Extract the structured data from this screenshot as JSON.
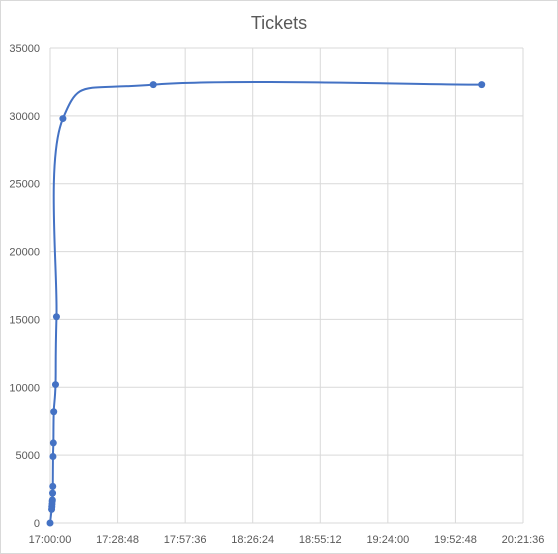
{
  "chart_data": {
    "type": "scatter",
    "title": "Tickets",
    "xlabel": "",
    "ylabel": "",
    "smooth_line": true,
    "grid": true,
    "legend": "none",
    "series_color": "#4472c4",
    "x_ticks": [
      "17:00:00",
      "17:28:48",
      "17:57:36",
      "18:26:24",
      "18:55:12",
      "19:24:00",
      "19:52:48",
      "20:21:36"
    ],
    "y_ticks": [
      "0",
      "5000",
      "10000",
      "15000",
      "20000",
      "25000",
      "30000",
      "35000"
    ],
    "xlim": [
      "17:00:00",
      "20:21:36"
    ],
    "ylim": [
      0,
      35000
    ],
    "series": [
      {
        "x": [
          "17:00:00",
          "17:00:40",
          "17:00:45",
          "17:00:50",
          "17:00:55",
          "17:01:00",
          "17:01:05",
          "17:01:10",
          "17:01:15",
          "17:01:25",
          "17:01:35",
          "17:02:20",
          "17:02:45",
          "17:05:30",
          "17:44:00",
          "20:04:00"
        ],
        "values": [
          0,
          1000,
          1200,
          1400,
          1600,
          1700,
          2200,
          2700,
          4900,
          5900,
          8200,
          10200,
          15200,
          29800,
          32300,
          32300
        ]
      }
    ]
  }
}
